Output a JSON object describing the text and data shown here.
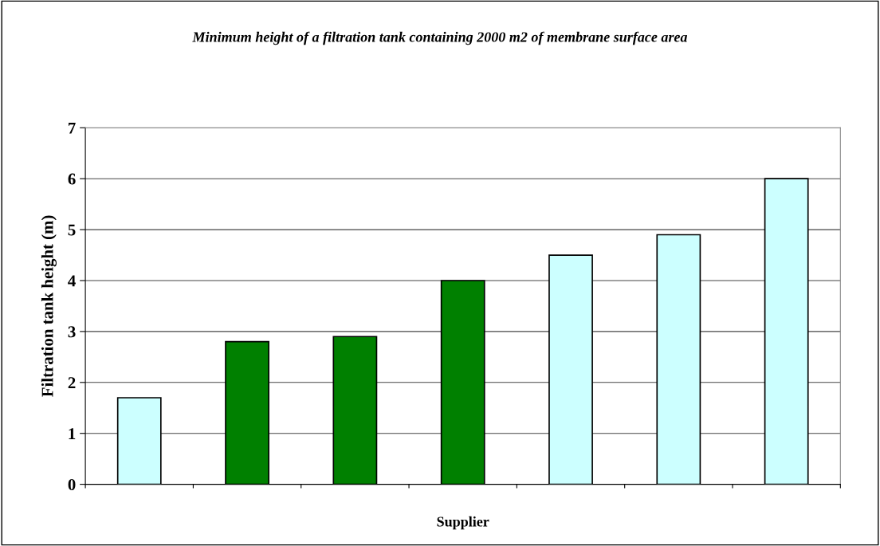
{
  "chart_data": {
    "type": "bar",
    "title": "Minimum height of a filtration tank containing 2000 m2 of membrane surface area",
    "xlabel": "Supplier",
    "ylabel": "Filtration tank height (m)",
    "categories": [
      null,
      null,
      null,
      null,
      null,
      null,
      null
    ],
    "values": [
      1.7,
      2.8,
      2.9,
      4.0,
      4.5,
      4.9,
      6.0
    ],
    "colors": [
      "#ccffff",
      "#008000",
      "#008000",
      "#008000",
      "#ccffff",
      "#ccffff",
      "#ccffff"
    ],
    "ylim": [
      0,
      7
    ],
    "yticks": [
      0,
      1,
      2,
      3,
      4,
      5,
      6,
      7
    ],
    "grid": "y",
    "legend": false
  }
}
